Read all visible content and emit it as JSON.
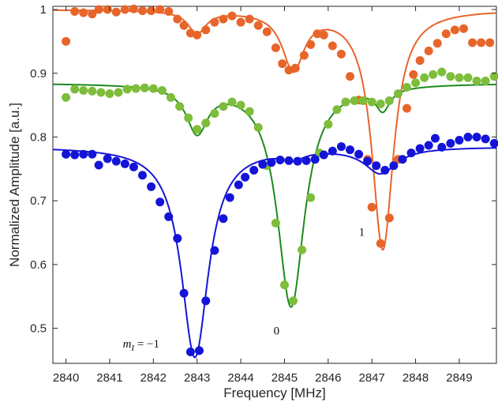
{
  "chart_data": {
    "type": "scatter",
    "title": "",
    "xlabel": "Frequency [MHz]",
    "ylabel": "Normalized Amplitude [a.u.]",
    "xlim": [
      2839.7,
      2849.85
    ],
    "ylim": [
      0.445,
      1.005
    ],
    "xticks": [
      2840,
      2841,
      2842,
      2843,
      2844,
      2845,
      2846,
      2847,
      2848,
      2849
    ],
    "yticks": [
      0.5,
      0.6,
      0.7,
      0.8,
      0.9,
      1
    ],
    "ytick_labels": [
      "0.5",
      "0.6",
      "0.7",
      "0.8",
      "0.9",
      "1"
    ],
    "grid": false,
    "series": [
      {
        "color": "#E8652A",
        "fit": {
          "baseline": 1.0,
          "dips": [
            [
              2843.0,
              0.035,
              0.25
            ],
            [
              2845.2,
              0.09,
              0.3
            ],
            [
              2847.25,
              0.375,
              0.3
            ]
          ]
        },
        "points": [
          [
            2840.0,
            0.95
          ],
          [
            2840.2,
            0.997
          ],
          [
            2840.4,
            0.995
          ],
          [
            2840.6,
            0.993
          ],
          [
            2840.75,
            1.0
          ],
          [
            2840.95,
            1.0
          ],
          [
            2841.15,
            0.996
          ],
          [
            2841.35,
            1.0
          ],
          [
            2841.55,
            1.001
          ],
          [
            2841.75,
            0.998
          ],
          [
            2841.95,
            0.998
          ],
          [
            2842.15,
            1.0
          ],
          [
            2842.35,
            0.997
          ],
          [
            2842.55,
            0.985
          ],
          [
            2842.7,
            0.975
          ],
          [
            2842.85,
            0.963
          ],
          [
            2843.0,
            0.96
          ],
          [
            2843.2,
            0.968
          ],
          [
            2843.4,
            0.98
          ],
          [
            2843.6,
            0.985
          ],
          [
            2843.8,
            0.99
          ],
          [
            2844.0,
            0.98
          ],
          [
            2844.2,
            0.985
          ],
          [
            2844.4,
            0.975
          ],
          [
            2844.6,
            0.965
          ],
          [
            2844.8,
            0.94
          ],
          [
            2844.95,
            0.915
          ],
          [
            2845.1,
            0.905
          ],
          [
            2845.25,
            0.908
          ],
          [
            2845.45,
            0.928
          ],
          [
            2845.6,
            0.945
          ],
          [
            2845.75,
            0.962
          ],
          [
            2845.9,
            0.96
          ],
          [
            2846.1,
            0.943
          ],
          [
            2846.3,
            0.93
          ],
          [
            2846.5,
            0.895
          ],
          [
            2846.7,
            0.858
          ],
          [
            2846.9,
            0.765
          ],
          [
            2847.0,
            0.69
          ],
          [
            2847.2,
            0.633
          ],
          [
            2847.4,
            0.673
          ],
          [
            2847.6,
            0.765
          ],
          [
            2847.8,
            0.845
          ],
          [
            2847.95,
            0.898
          ],
          [
            2848.1,
            0.92
          ],
          [
            2848.3,
            0.935
          ],
          [
            2848.5,
            0.947
          ],
          [
            2848.7,
            0.962
          ],
          [
            2848.9,
            0.968
          ],
          [
            2849.1,
            0.97
          ],
          [
            2849.3,
            0.948
          ],
          [
            2849.5,
            0.948
          ],
          [
            2849.7,
            0.948
          ]
        ]
      },
      {
        "color": "#7DBD3A",
        "line_color": "#1F8A1F",
        "fit": {
          "baseline": 0.885,
          "dips": [
            [
              2843.0,
              0.072,
              0.3
            ],
            [
              2845.15,
              0.35,
              0.38
            ],
            [
              2847.25,
              0.035,
              0.2
            ]
          ]
        },
        "points": [
          [
            2840.0,
            0.862
          ],
          [
            2840.2,
            0.875
          ],
          [
            2840.4,
            0.873
          ],
          [
            2840.6,
            0.872
          ],
          [
            2840.8,
            0.87
          ],
          [
            2841.0,
            0.868
          ],
          [
            2841.2,
            0.87
          ],
          [
            2841.4,
            0.875
          ],
          [
            2841.6,
            0.876
          ],
          [
            2841.8,
            0.877
          ],
          [
            2842.0,
            0.876
          ],
          [
            2842.2,
            0.873
          ],
          [
            2842.4,
            0.862
          ],
          [
            2842.6,
            0.848
          ],
          [
            2842.8,
            0.83
          ],
          [
            2843.0,
            0.812
          ],
          [
            2843.2,
            0.822
          ],
          [
            2843.4,
            0.837
          ],
          [
            2843.6,
            0.848
          ],
          [
            2843.8,
            0.855
          ],
          [
            2844.0,
            0.85
          ],
          [
            2844.2,
            0.84
          ],
          [
            2844.4,
            0.815
          ],
          [
            2844.6,
            0.755
          ],
          [
            2844.8,
            0.665
          ],
          [
            2845.0,
            0.568
          ],
          [
            2845.2,
            0.543
          ],
          [
            2845.4,
            0.623
          ],
          [
            2845.6,
            0.705
          ],
          [
            2845.8,
            0.775
          ],
          [
            2846.0,
            0.82
          ],
          [
            2846.2,
            0.843
          ],
          [
            2846.4,
            0.855
          ],
          [
            2846.6,
            0.857
          ],
          [
            2846.8,
            0.857
          ],
          [
            2847.0,
            0.855
          ],
          [
            2847.2,
            0.852
          ],
          [
            2847.4,
            0.857
          ],
          [
            2847.6,
            0.868
          ],
          [
            2847.8,
            0.878
          ],
          [
            2848.0,
            0.885
          ],
          [
            2848.2,
            0.893
          ],
          [
            2848.4,
            0.898
          ],
          [
            2848.6,
            0.902
          ],
          [
            2848.8,
            0.895
          ],
          [
            2849.0,
            0.893
          ],
          [
            2849.2,
            0.893
          ],
          [
            2849.4,
            0.888
          ],
          [
            2849.6,
            0.888
          ],
          [
            2849.8,
            0.895
          ]
        ]
      },
      {
        "color": "#1414D8",
        "fit": {
          "baseline": 0.785,
          "dips": [
            [
              2842.95,
              0.33,
              0.38
            ],
            [
              2845.2,
              0.012,
              0.3
            ],
            [
              2847.2,
              0.04,
              0.45
            ]
          ]
        },
        "points": [
          [
            2840.0,
            0.773
          ],
          [
            2840.2,
            0.772
          ],
          [
            2840.4,
            0.773
          ],
          [
            2840.6,
            0.773
          ],
          [
            2840.75,
            0.756
          ],
          [
            2840.95,
            0.766
          ],
          [
            2841.15,
            0.762
          ],
          [
            2841.35,
            0.758
          ],
          [
            2841.55,
            0.753
          ],
          [
            2841.75,
            0.74
          ],
          [
            2841.95,
            0.722
          ],
          [
            2842.15,
            0.698
          ],
          [
            2842.35,
            0.675
          ],
          [
            2842.55,
            0.641
          ],
          [
            2842.7,
            0.555
          ],
          [
            2842.85,
            0.463
          ],
          [
            2843.05,
            0.465
          ],
          [
            2843.2,
            0.543
          ],
          [
            2843.4,
            0.622
          ],
          [
            2843.6,
            0.672
          ],
          [
            2843.75,
            0.705
          ],
          [
            2843.95,
            0.725
          ],
          [
            2844.1,
            0.737
          ],
          [
            2844.3,
            0.748
          ],
          [
            2844.5,
            0.757
          ],
          [
            2844.7,
            0.76
          ],
          [
            2844.9,
            0.764
          ],
          [
            2845.1,
            0.763
          ],
          [
            2845.3,
            0.762
          ],
          [
            2845.5,
            0.763
          ],
          [
            2845.7,
            0.765
          ],
          [
            2845.9,
            0.772
          ],
          [
            2846.1,
            0.778
          ],
          [
            2846.3,
            0.785
          ],
          [
            2846.5,
            0.78
          ],
          [
            2846.7,
            0.773
          ],
          [
            2846.9,
            0.762
          ],
          [
            2847.1,
            0.755
          ],
          [
            2847.3,
            0.748
          ],
          [
            2847.5,
            0.755
          ],
          [
            2847.7,
            0.765
          ],
          [
            2847.9,
            0.775
          ],
          [
            2848.1,
            0.782
          ],
          [
            2848.3,
            0.787
          ],
          [
            2848.45,
            0.798
          ],
          [
            2848.6,
            0.784
          ],
          [
            2848.8,
            0.79
          ],
          [
            2849.0,
            0.795
          ],
          [
            2849.2,
            0.8
          ],
          [
            2849.4,
            0.8
          ],
          [
            2849.6,
            0.797
          ],
          [
            2849.8,
            0.79
          ]
        ]
      }
    ],
    "annotations": [
      {
        "text": "1",
        "x": 2846.7,
        "y": 0.645
      },
      {
        "text": "0",
        "x": 2844.75,
        "y": 0.49
      },
      {
        "text": "m_I = −1",
        "x": 2841.3,
        "y": 0.47
      }
    ]
  }
}
